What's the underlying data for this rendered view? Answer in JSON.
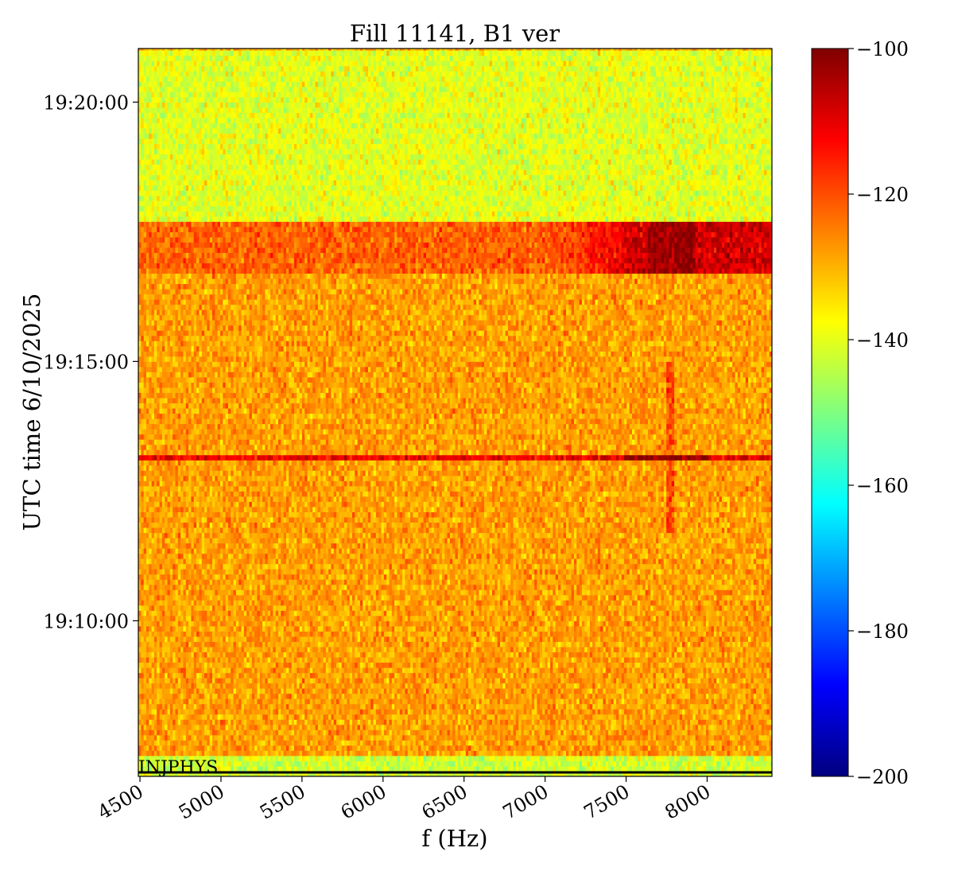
{
  "chart_data": {
    "type": "heatmap",
    "title": "Fill 11141, B1 ver",
    "xlabel": "f (Hz)",
    "ylabel": "UTC time 6/10/2025",
    "xlim": [
      4490,
      8400
    ],
    "x_ticks": [
      4500,
      5000,
      5500,
      6000,
      6500,
      7000,
      7500,
      8000
    ],
    "y_ticks": [
      "19:10:00",
      "19:15:00",
      "19:20:00"
    ],
    "y_tick_seconds": [
      600,
      900,
      1200
    ],
    "ylim_seconds": [
      420,
      1262
    ],
    "colormap": "jet",
    "colorbar": {
      "min": -200,
      "max": -100,
      "ticks": [
        -100,
        -120,
        -140,
        -160,
        -180,
        -200
      ]
    },
    "annotation": "INJPHYS",
    "regions": [
      {
        "t_from": 420,
        "t_to": 447,
        "level_dB": -142,
        "note": "bottom quiet band"
      },
      {
        "t_from": 447,
        "t_to": 1000,
        "level_dB": -128
      },
      {
        "t_from": 1000,
        "t_to": 1062,
        "level_dB": -122,
        "hot_from_Hz": 7050,
        "hot_level_dB": -108
      },
      {
        "t_from": 1062,
        "t_to": 1262,
        "level_dB": -140,
        "note": "top quiet band"
      }
    ],
    "lines": [
      {
        "t": 790,
        "level_dB": -111,
        "peak_Hz": 7750,
        "peak_level_dB": -101
      },
      {
        "t": 780,
        "level_dB": -114,
        "peak_Hz": 7750,
        "peak_level_dB": -102
      }
    ],
    "feature_frequency_Hz": 7780
  }
}
